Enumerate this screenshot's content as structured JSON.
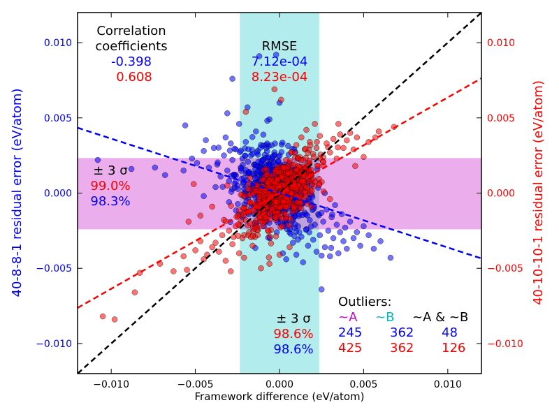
{
  "chart_data": {
    "type": "scatter",
    "xlabel": "Framework difference (eV/atom)",
    "ylabel_left": "40-8-8-1 residual error (eV/atom)",
    "ylabel_right": "40-10-10-1 residual error (eV/atom)",
    "xlim": [
      -0.012,
      0.012
    ],
    "ylim": [
      -0.012,
      0.012
    ],
    "x_ticks": [
      {
        "value": -0.01,
        "label": "−0.010"
      },
      {
        "value": -0.005,
        "label": "−0.005"
      },
      {
        "value": 0.0,
        "label": "0.000"
      },
      {
        "value": 0.005,
        "label": "0.005"
      },
      {
        "value": 0.01,
        "label": "0.010"
      }
    ],
    "y_ticks": [
      {
        "value": -0.01,
        "label": "−0.010"
      },
      {
        "value": -0.005,
        "label": "−0.005"
      },
      {
        "value": 0.0,
        "label": "0.000"
      },
      {
        "value": 0.005,
        "label": "0.005"
      },
      {
        "value": 0.01,
        "label": "0.010"
      }
    ],
    "colors": {
      "left_axis": "#0000ff",
      "right_axis": "#ff0000",
      "series_a": "#cc00cc",
      "series_b": "#00bbbb",
      "black": "#000000"
    },
    "bands": {
      "vertical": {
        "x0": -0.00236,
        "x1": 0.00236,
        "color": "#40cfcf",
        "opacity": 0.4
      },
      "horizontal": {
        "y0": -0.00241,
        "y1": 0.00233,
        "color": "#cc33cc",
        "opacity": 0.4
      }
    },
    "lines": [
      {
        "name": "diagonal",
        "color": "#000000",
        "slope": 1.0,
        "intercept": 0.0
      },
      {
        "name": "fit-blue",
        "color": "#0000ff",
        "slope": -0.362,
        "intercept": 0.0
      },
      {
        "name": "fit-red",
        "color": "#ff0000",
        "slope": 0.636,
        "intercept": 0.0
      }
    ],
    "series": [
      {
        "color": "#0000ff",
        "points": [
          [
            -0.0108,
            0.0022
          ],
          [
            -0.0088,
            0.0016
          ],
          [
            -0.0074,
            0.0017
          ],
          [
            -0.0068,
            0.0012
          ],
          [
            -0.0056,
            0.0045
          ],
          [
            -0.0052,
            0.0023
          ],
          [
            -0.0057,
            0.0015
          ],
          [
            -0.0049,
            0.002
          ],
          [
            -0.0045,
            0.0028
          ],
          [
            -0.0042,
            0.0017
          ],
          [
            -0.0039,
            0.003
          ],
          [
            -0.0037,
            0.0019
          ],
          [
            -0.0035,
            0.0011
          ],
          [
            -0.0033,
            0.0025
          ],
          [
            -0.0032,
            0.0037
          ],
          [
            -0.0031,
            0.0053
          ],
          [
            -0.0031,
            0.0015
          ],
          [
            -0.003,
            0.0008
          ],
          [
            -0.0029,
            0.0033
          ],
          [
            -0.0028,
            0.0022
          ],
          [
            -0.0028,
            0.0076
          ],
          [
            -0.0027,
            0.0012
          ],
          [
            -0.0026,
            0.0029
          ],
          [
            -0.0025,
            0.0005
          ],
          [
            -0.0024,
            0.0046
          ],
          [
            -0.0023,
            0.0017
          ],
          [
            -0.0022,
            0.0023
          ],
          [
            -0.0021,
            0.001
          ],
          [
            -0.002,
            0.0034
          ],
          [
            -0.0019,
            0.0057
          ],
          [
            -0.0018,
            0.0014
          ],
          [
            -0.0017,
            0.0025
          ],
          [
            -0.0016,
            0.0004
          ],
          [
            -0.0015,
            0.0019
          ],
          [
            -0.0014,
            0.0041
          ],
          [
            -0.0013,
            0.0028
          ],
          [
            -0.0012,
            0.0091
          ],
          [
            -0.0011,
            0.0013
          ],
          [
            -0.001,
            0.0022
          ],
          [
            -0.0009,
            0.0006
          ],
          [
            -0.0008,
            0.0032
          ],
          [
            -0.0007,
            0.0016
          ],
          [
            -0.0006,
            0.0049
          ],
          [
            -0.0005,
            0.0021
          ],
          [
            -0.0004,
            0.0008
          ],
          [
            -0.0003,
            0.0027
          ],
          [
            -0.0002,
            0.0015
          ],
          [
            -0.0001,
            -0.0004
          ],
          [
            0.0,
            0.006
          ],
          [
            0.0001,
            0.0011
          ],
          [
            0.0002,
            -0.0012
          ],
          [
            0.0003,
            0.0019
          ],
          [
            0.0004,
            -0.002
          ],
          [
            0.0005,
            0.0006
          ],
          [
            0.0006,
            -0.0026
          ],
          [
            0.0007,
            -0.0009
          ],
          [
            0.0008,
            -0.0033
          ],
          [
            0.0009,
            -0.0015
          ],
          [
            0.001,
            -0.0041
          ],
          [
            0.0011,
            -0.0022
          ],
          [
            0.0012,
            -0.0005
          ],
          [
            0.0013,
            -0.0029
          ],
          [
            0.0014,
            -0.0046
          ],
          [
            0.0015,
            -0.0013
          ],
          [
            0.0016,
            -0.0024
          ],
          [
            0.0017,
            -0.0035
          ],
          [
            0.0018,
            -0.0018
          ],
          [
            0.0019,
            -0.0008
          ],
          [
            0.002,
            -0.0031
          ],
          [
            0.0021,
            -0.0021
          ],
          [
            0.0022,
            -0.0039
          ],
          [
            0.0023,
            -0.0014
          ],
          [
            0.0024,
            -0.0028
          ],
          [
            0.0025,
            -0.0064
          ],
          [
            0.0026,
            -0.0019
          ],
          [
            0.0027,
            -0.0036
          ],
          [
            0.0028,
            -0.0011
          ],
          [
            0.0029,
            -0.0025
          ],
          [
            0.003,
            -0.0042
          ],
          [
            0.0031,
            -0.0016
          ],
          [
            0.0032,
            -0.003
          ],
          [
            0.0033,
            -0.0008
          ],
          [
            0.0034,
            -0.0021
          ],
          [
            0.0035,
            -0.004
          ],
          [
            0.0036,
            -0.0026
          ],
          [
            0.0037,
            -0.0014
          ],
          [
            0.0038,
            -0.0032
          ],
          [
            0.0039,
            -0.0023
          ],
          [
            0.004,
            -0.0037
          ],
          [
            0.0042,
            -0.0019
          ],
          [
            0.0044,
            -0.003
          ],
          [
            0.0046,
            -0.0026
          ],
          [
            0.0048,
            -0.0035
          ],
          [
            0.005,
            -0.0022
          ],
          [
            0.0053,
            -0.0028
          ],
          [
            0.0056,
            -0.0037
          ],
          [
            0.006,
            -0.0032
          ],
          [
            0.0066,
            -0.0043
          ],
          [
            -0.0002,
            0.0092
          ],
          [
            0.0002,
            -0.004
          ],
          [
            -0.0045,
            -0.0002
          ],
          [
            -0.0038,
            0.0004
          ],
          [
            -0.003,
            -0.0006
          ],
          [
            -0.0024,
            -0.0014
          ],
          [
            0.0004,
            -0.0044
          ],
          [
            -0.0008,
            -0.0019
          ],
          [
            0.0011,
            -0.0031
          ]
        ]
      },
      {
        "color": "#ff0000",
        "points": [
          [
            -0.0105,
            -0.0082
          ],
          [
            -0.0098,
            -0.0084
          ],
          [
            -0.0086,
            -0.0066
          ],
          [
            -0.0083,
            -0.0053
          ],
          [
            -0.0071,
            -0.0047
          ],
          [
            -0.0063,
            -0.0052
          ],
          [
            -0.0057,
            -0.0042
          ],
          [
            -0.0055,
            -0.0051
          ],
          [
            -0.0054,
            -0.0019
          ],
          [
            -0.005,
            -0.0038
          ],
          [
            -0.0047,
            -0.0032
          ],
          [
            -0.0045,
            -0.0044
          ],
          [
            -0.0043,
            -0.0041
          ],
          [
            -0.004,
            -0.0036
          ],
          [
            -0.0038,
            -0.0033
          ],
          [
            -0.0036,
            -0.0039
          ],
          [
            -0.0034,
            -0.0028
          ],
          [
            -0.0032,
            -0.0045
          ],
          [
            -0.003,
            -0.0025
          ],
          [
            -0.0028,
            -0.0034
          ],
          [
            -0.0026,
            -0.0022
          ],
          [
            -0.0024,
            -0.004
          ],
          [
            -0.0022,
            -0.003
          ],
          [
            -0.0021,
            -0.0043
          ],
          [
            -0.002,
            -0.0018
          ],
          [
            -0.0018,
            -0.0026
          ],
          [
            -0.0017,
            -0.0012
          ],
          [
            -0.0016,
            -0.0035
          ],
          [
            -0.0015,
            -0.002
          ],
          [
            -0.0014,
            -0.0008
          ],
          [
            -0.0013,
            -0.0028
          ],
          [
            -0.0012,
            -0.0015
          ],
          [
            -0.0011,
            -0.0003
          ],
          [
            -0.001,
            -0.0022
          ],
          [
            -0.0009,
            -0.001
          ],
          [
            -0.0008,
            0.0002
          ],
          [
            -0.0007,
            -0.0016
          ],
          [
            -0.0006,
            -0.0005
          ],
          [
            -0.0005,
            0.0008
          ],
          [
            -0.0004,
            -0.0011
          ],
          [
            -0.0003,
            0.0001
          ],
          [
            -0.0002,
            0.0012
          ],
          [
            -0.0001,
            -0.0006
          ],
          [
            0.0,
            0.0006
          ],
          [
            0.0001,
            0.0017
          ],
          [
            0.0002,
            -0.0002
          ],
          [
            0.0003,
            0.001
          ],
          [
            0.0004,
            0.0022
          ],
          [
            0.0005,
            0.0004
          ],
          [
            0.0006,
            0.0015
          ],
          [
            0.0007,
            0.0027
          ],
          [
            0.0008,
            0.0008
          ],
          [
            0.0009,
            0.0019
          ],
          [
            0.001,
            0.0032
          ],
          [
            0.0011,
            0.0012
          ],
          [
            0.0012,
            0.0024
          ],
          [
            0.0013,
            0.0037
          ],
          [
            0.0014,
            0.0016
          ],
          [
            0.0015,
            0.0029
          ],
          [
            0.0016,
            0.0042
          ],
          [
            0.0017,
            0.002
          ],
          [
            0.0018,
            0.0034
          ],
          [
            0.0019,
            0.0013
          ],
          [
            0.002,
            0.0026
          ],
          [
            0.0021,
            0.0046
          ],
          [
            0.0022,
            0.003
          ],
          [
            0.0023,
            0.0018
          ],
          [
            0.0024,
            0.0038
          ],
          [
            0.0026,
            0.0024
          ],
          [
            0.0028,
            0.0033
          ],
          [
            0.003,
            0.0027
          ],
          [
            0.0032,
            0.0036
          ],
          [
            0.0034,
            0.0023
          ],
          [
            0.0036,
            0.0039
          ],
          [
            0.0038,
            0.003
          ],
          [
            0.004,
            0.0035
          ],
          [
            0.0042,
            0.004
          ],
          [
            0.0044,
            0.0029
          ],
          [
            0.0046,
            0.0037
          ],
          [
            0.005,
            0.0024
          ],
          [
            0.0053,
            0.0034
          ],
          [
            0.0057,
            0.0037
          ],
          [
            0.0059,
            0.0041
          ],
          [
            0.0068,
            0.0044
          ],
          [
            -0.0003,
            0.0069
          ],
          [
            0.0001,
            0.0062
          ],
          [
            -0.002,
            0.0054
          ],
          [
            -0.0011,
            -0.005
          ],
          [
            -0.0006,
            -0.0047
          ],
          [
            0.0,
            -0.0041
          ],
          [
            0.0006,
            -0.0036
          ],
          [
            -0.0047,
            -0.0015
          ],
          [
            -0.0051,
            0.0006
          ],
          [
            0.003,
            -0.0004
          ],
          [
            0.0019,
            -0.0009
          ],
          [
            -0.004,
            -0.0009
          ],
          [
            -0.0031,
            0.0005
          ],
          [
            0.0045,
            0.0018
          ],
          [
            -0.0029,
            -0.0052
          ],
          [
            0.0035,
            0.0046
          ]
        ]
      }
    ],
    "dense_clusters": [
      {
        "color": "#0000ff",
        "cx": -0.0002,
        "cy": 0.0003,
        "sx": 0.0012,
        "sy": 0.0014,
        "rho": -0.35,
        "count": 500
      },
      {
        "color": "#ff0000",
        "cx": 0.0,
        "cy": 0.0,
        "sx": 0.0011,
        "sy": 0.0012,
        "rho": 0.6,
        "count": 550
      }
    ]
  },
  "annotations": {
    "correlation": {
      "title_line1": "Correlation",
      "title_line2": "coefficients",
      "blue": "-0.398",
      "red": "0.608"
    },
    "rmse": {
      "title": "RMSE",
      "blue": "7.12e-04",
      "red": "8.23e-04"
    },
    "sigma_left": {
      "label": "± 3 σ",
      "red": "99.0%",
      "blue": "98.3%"
    },
    "sigma_bottom": {
      "label": "± 3 σ",
      "red": "98.6%",
      "blue": "98.6%"
    },
    "outliers": {
      "title": "Outliers:",
      "col_a": "~A",
      "col_b": "~B",
      "col_ab": "~A & ~B",
      "blue": [
        "245",
        "362",
        "48"
      ],
      "red": [
        "425",
        "362",
        "126"
      ]
    }
  }
}
